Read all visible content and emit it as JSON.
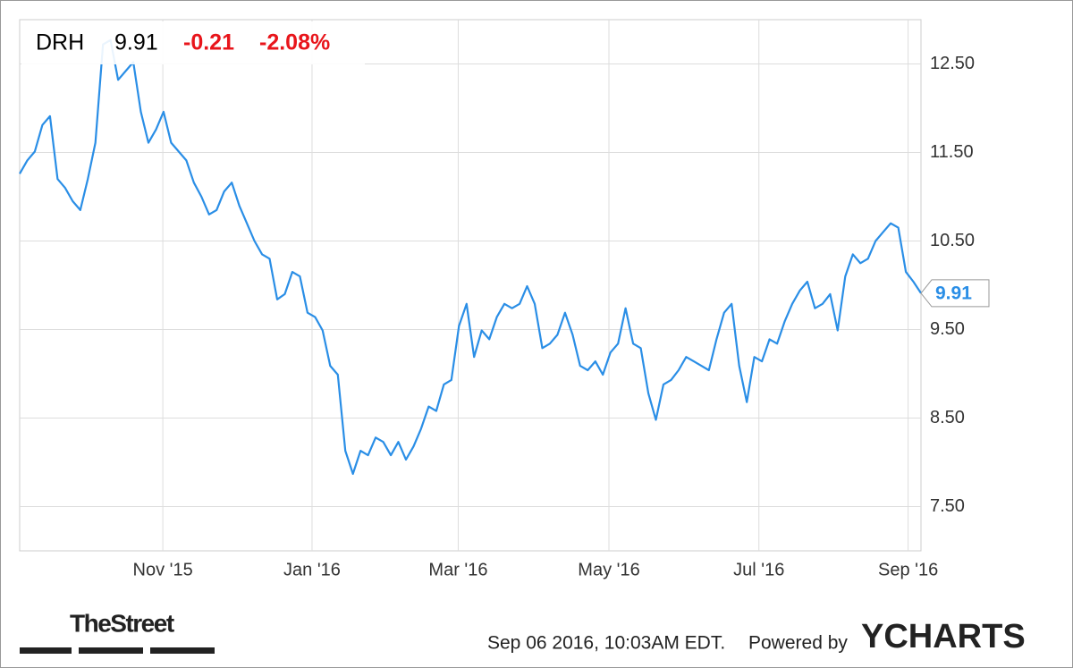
{
  "header": {
    "ticker": "DRH",
    "price": "9.91",
    "change": "-0.21",
    "change_pct": "-2.08%"
  },
  "chart_data": {
    "type": "line",
    "series": [
      {
        "name": "DRH",
        "color": "#2a8ee6",
        "values": [
          11.26,
          11.41,
          11.51,
          11.81,
          11.91,
          11.2,
          11.1,
          10.95,
          10.85,
          11.2,
          11.61,
          12.72,
          12.77,
          12.32,
          12.42,
          12.52,
          11.96,
          11.61,
          11.76,
          11.96,
          11.61,
          11.51,
          11.41,
          11.16,
          11.0,
          10.8,
          10.85,
          11.06,
          11.16,
          10.9,
          10.7,
          10.5,
          10.35,
          10.3,
          9.84,
          9.9,
          10.15,
          10.1,
          9.69,
          9.64,
          9.49,
          9.09,
          8.99,
          8.13,
          7.87,
          8.13,
          8.08,
          8.28,
          8.23,
          8.08,
          8.23,
          8.03,
          8.18,
          8.38,
          8.63,
          8.58,
          8.88,
          8.93,
          9.54,
          9.79,
          9.19,
          9.49,
          9.39,
          9.64,
          9.79,
          9.74,
          9.79,
          9.99,
          9.79,
          9.29,
          9.34,
          9.44,
          9.69,
          9.44,
          9.09,
          9.04,
          9.14,
          8.99,
          9.24,
          9.34,
          9.74,
          9.34,
          9.29,
          8.78,
          8.48,
          8.88,
          8.93,
          9.04,
          9.19,
          9.14,
          9.09,
          9.04,
          9.39,
          9.69,
          9.79,
          9.09,
          8.68,
          9.19,
          9.14,
          9.39,
          9.34,
          9.59,
          9.79,
          9.94,
          10.04,
          9.74,
          9.79,
          9.9,
          9.49,
          10.1,
          10.35,
          10.25,
          10.3,
          10.5,
          10.6,
          10.7,
          10.65,
          10.15,
          10.04,
          9.91
        ]
      }
    ],
    "xlim": [
      0,
      119
    ],
    "xticks": [
      {
        "value": 18.9,
        "label": "Nov '15"
      },
      {
        "value": 38.6,
        "label": "Jan '16"
      },
      {
        "value": 57.9,
        "label": "Mar '16"
      },
      {
        "value": 77.8,
        "label": "May '16"
      },
      {
        "value": 97.6,
        "label": "Jul '16"
      },
      {
        "value": 117.3,
        "label": "Sep '16"
      }
    ],
    "ylim": [
      7.0,
      13.0
    ],
    "yticks": [
      {
        "value": 7.5,
        "label": "7.50"
      },
      {
        "value": 8.5,
        "label": "8.50"
      },
      {
        "value": 9.5,
        "label": "9.50"
      },
      {
        "value": 10.5,
        "label": "10.50"
      },
      {
        "value": 11.5,
        "label": "11.50"
      },
      {
        "value": 12.5,
        "label": "12.50"
      }
    ],
    "grid": true
  },
  "footer": {
    "source": "TheStreet",
    "timestamp": "Sep 06 2016, 10:03AM EDT.",
    "powered": "Powered by",
    "brand": "YCHARTS"
  }
}
